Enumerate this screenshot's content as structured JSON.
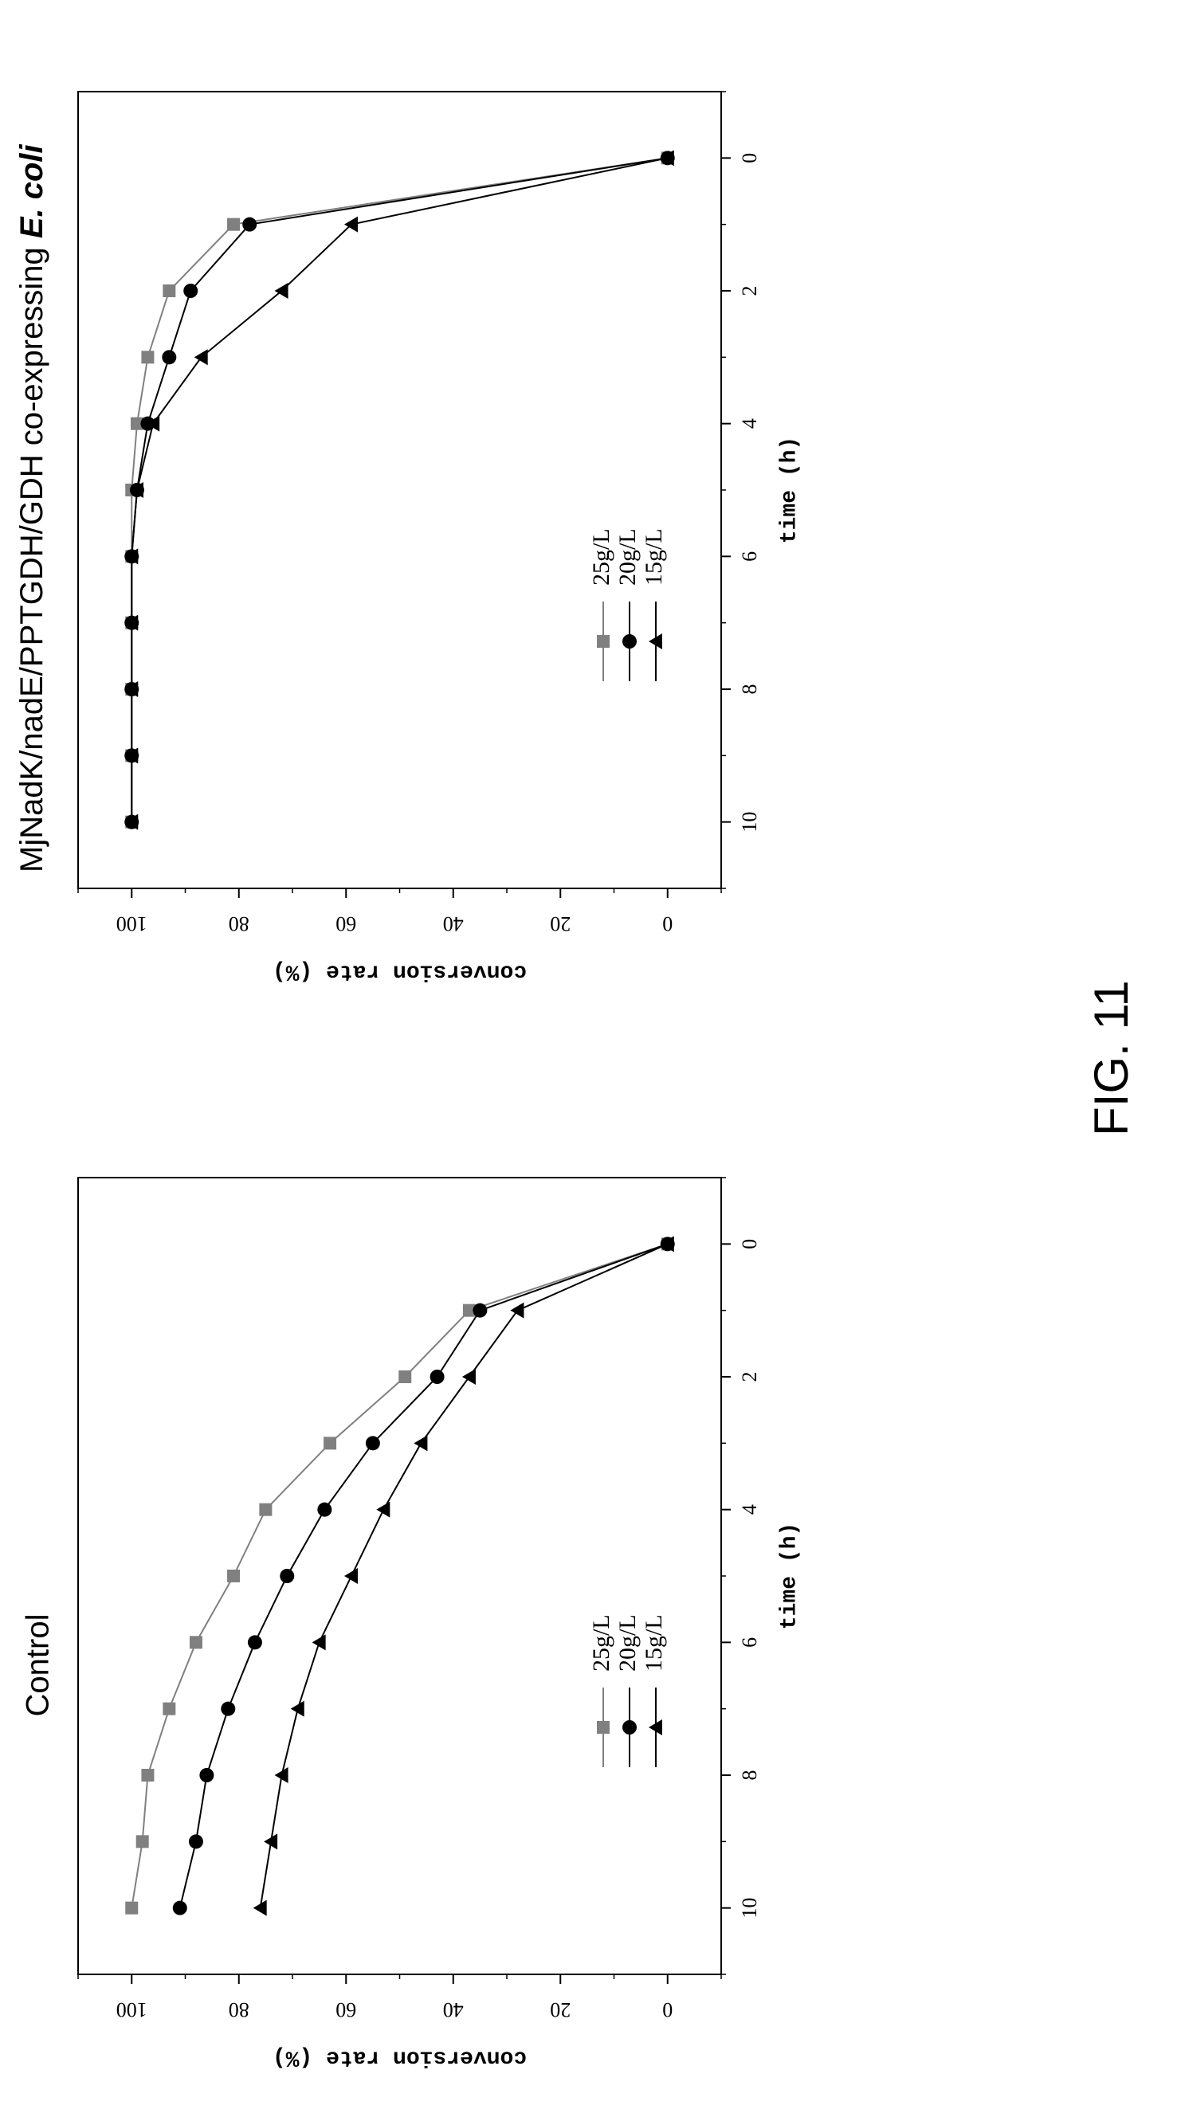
{
  "figure_label": "FIG. 11",
  "chart_data": [
    {
      "type": "line",
      "title": "Control",
      "title_style": "plain",
      "xlabel": "time (h)",
      "ylabel": "conversion rate (%)",
      "xlim": [
        -1,
        11
      ],
      "ylim": [
        -10,
        110
      ],
      "xticks": [
        "0",
        "2",
        "4",
        "6",
        "8",
        "10"
      ],
      "yticks": [
        "0",
        "20",
        "40",
        "60",
        "80",
        "100"
      ],
      "x": [
        0,
        1,
        2,
        3,
        4,
        5,
        6,
        7,
        8,
        9,
        10
      ],
      "legend_position": "bottom-right",
      "series": [
        {
          "name": "25g/L",
          "marker": "square",
          "color": "#808080",
          "values": [
            0,
            37,
            49,
            63,
            75,
            81,
            88,
            93,
            97,
            98,
            100
          ]
        },
        {
          "name": "20g/L",
          "marker": "circle",
          "color": "#000000",
          "values": [
            0,
            35,
            43,
            55,
            64,
            71,
            77,
            82,
            86,
            88,
            91
          ]
        },
        {
          "name": "15g/L",
          "marker": "triangle",
          "color": "#000000",
          "values": [
            0,
            28,
            37,
            46,
            53,
            59,
            65,
            69,
            72,
            74,
            76
          ]
        }
      ]
    },
    {
      "type": "line",
      "title": "MjNadK/nadE/PPTGDH/GDH co-expressing ",
      "title_suffix": "E. coli",
      "xlabel": "time (h)",
      "ylabel": "conversion rate (%)",
      "xlim": [
        -1,
        11
      ],
      "ylim": [
        -10,
        110
      ],
      "xticks": [
        "0",
        "2",
        "4",
        "6",
        "8",
        "10"
      ],
      "yticks": [
        "0",
        "20",
        "40",
        "60",
        "80",
        "100"
      ],
      "x": [
        0,
        1,
        2,
        3,
        4,
        5,
        6,
        7,
        8,
        9,
        10
      ],
      "legend_position": "bottom-right",
      "series": [
        {
          "name": "25g/L",
          "marker": "square",
          "color": "#808080",
          "values": [
            0,
            81,
            93,
            97,
            99,
            100,
            100,
            100,
            100,
            100,
            100
          ]
        },
        {
          "name": "20g/L",
          "marker": "circle",
          "color": "#000000",
          "values": [
            0,
            78,
            89,
            93,
            97,
            99,
            100,
            100,
            100,
            100,
            100
          ]
        },
        {
          "name": "15g/L",
          "marker": "triangle",
          "color": "#000000",
          "values": [
            0,
            59,
            72,
            87,
            96,
            99,
            100,
            100,
            100,
            100,
            100
          ]
        }
      ]
    }
  ]
}
